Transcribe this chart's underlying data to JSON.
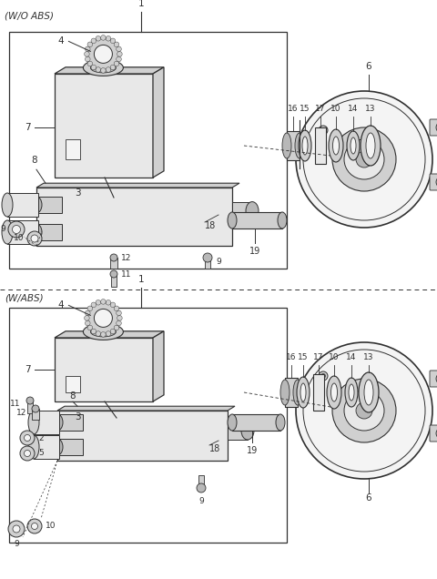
{
  "bg_color": "#ffffff",
  "lc": "#303030",
  "gray1": "#e8e8e8",
  "gray2": "#d0d0d0",
  "gray3": "#b8b8b8",
  "gray4": "#f4f4f4",
  "figsize": [
    4.8,
    6.36
  ],
  "dpi": 100,
  "title_wo": "(W/O ABS)",
  "title_w": "(W/ABS)"
}
